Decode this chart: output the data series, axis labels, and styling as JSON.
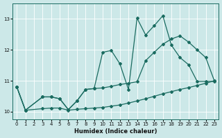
{
  "xlabel": "Humidex (Indice chaleur)",
  "bg_color": "#cce8e8",
  "line_color": "#1a6b60",
  "grid_color": "#ffffff",
  "xlim": [
    -0.5,
    23.5
  ],
  "ylim": [
    9.75,
    13.5
  ],
  "yticks": [
    10,
    11,
    12,
    13
  ],
  "xticks": [
    0,
    1,
    2,
    3,
    4,
    5,
    6,
    7,
    8,
    9,
    10,
    11,
    12,
    13,
    14,
    15,
    16,
    17,
    18,
    19,
    20,
    21,
    22,
    23
  ],
  "l1x": [
    0,
    1,
    3,
    4,
    5,
    6,
    7,
    8,
    9,
    10,
    11,
    12,
    13,
    14,
    15,
    16,
    17,
    18,
    19,
    20,
    21,
    22,
    23
  ],
  "l1y": [
    10.8,
    10.05,
    10.48,
    10.48,
    10.42,
    10.07,
    10.35,
    10.72,
    10.75,
    11.92,
    11.98,
    11.55,
    10.72,
    13.02,
    12.48,
    12.78,
    13.1,
    12.15,
    11.75,
    11.52,
    10.98,
    10.98,
    10.98
  ],
  "l2x": [
    0,
    1,
    3,
    4,
    5,
    6,
    7,
    8,
    9,
    10,
    11,
    12,
    13,
    14,
    15,
    16,
    17,
    18,
    19,
    20,
    21,
    22,
    23
  ],
  "l2y": [
    10.8,
    10.05,
    10.48,
    10.48,
    10.42,
    10.07,
    10.35,
    10.72,
    10.75,
    10.77,
    10.82,
    10.88,
    10.92,
    10.97,
    11.65,
    11.92,
    12.18,
    12.35,
    12.45,
    12.25,
    12.0,
    11.75,
    11.0
  ],
  "l3x": [
    0,
    1,
    3,
    4,
    5,
    6,
    7,
    8,
    9,
    10,
    11,
    12,
    13,
    14,
    15,
    16,
    17,
    18,
    19,
    20,
    21,
    22,
    23
  ],
  "l3y": [
    10.8,
    10.05,
    10.1,
    10.12,
    10.12,
    10.05,
    10.08,
    10.1,
    10.12,
    10.14,
    10.18,
    10.22,
    10.28,
    10.35,
    10.42,
    10.5,
    10.58,
    10.65,
    10.72,
    10.78,
    10.85,
    10.92,
    11.0
  ]
}
